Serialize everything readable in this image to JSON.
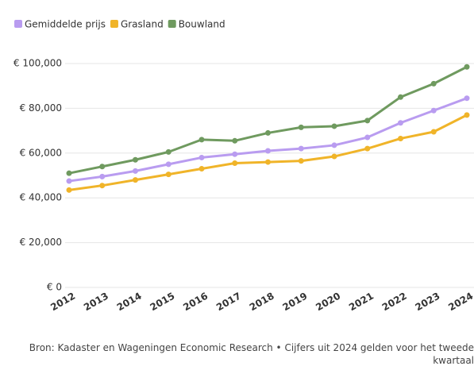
{
  "chart_data": {
    "type": "line",
    "categories": [
      "2012",
      "2013",
      "2014",
      "2015",
      "2016",
      "2017",
      "2018",
      "2019",
      "2020",
      "2021",
      "2022",
      "2023",
      "2024"
    ],
    "series": [
      {
        "name": "Gemiddelde prijs",
        "color": "#b99cf0",
        "values": [
          47500,
          49500,
          52000,
          55000,
          58000,
          59500,
          61000,
          62000,
          63500,
          67000,
          73500,
          79000,
          84500
        ]
      },
      {
        "name": "Grasland",
        "color": "#f0b429",
        "values": [
          43500,
          45500,
          48000,
          50500,
          53000,
          55500,
          56000,
          56500,
          58500,
          62000,
          66500,
          69500,
          77000
        ]
      },
      {
        "name": "Bouwland",
        "color": "#6f9a5f",
        "values": [
          51000,
          54000,
          57000,
          60500,
          66000,
          65500,
          69000,
          71500,
          72000,
          74500,
          85000,
          91000,
          98500
        ]
      }
    ],
    "ylim": [
      0,
      100000
    ],
    "yticks": [
      {
        "value": 0,
        "label": "€ 0"
      },
      {
        "value": 20000,
        "label": "€ 20,000"
      },
      {
        "value": 40000,
        "label": "€ 40,000"
      },
      {
        "value": 60000,
        "label": "€ 60,000"
      },
      {
        "value": 80000,
        "label": "€ 80,000"
      },
      {
        "value": 100000,
        "label": "€ 100,000"
      }
    ],
    "grid": true,
    "legend": "top-left",
    "source": "Bron: Kadaster en Wageningen Economic Research • Cijfers uit 2024 gelden voor het tweede kwartaal"
  }
}
